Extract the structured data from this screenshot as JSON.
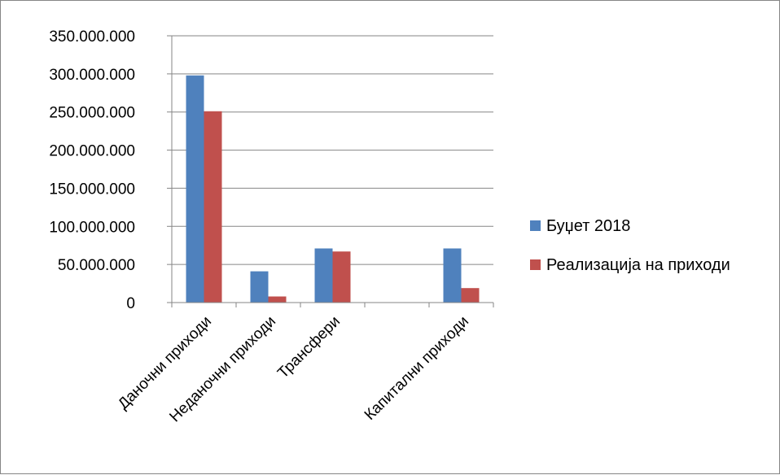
{
  "chart_data": {
    "type": "bar",
    "title": "",
    "xlabel": "",
    "ylabel": "",
    "categories": [
      "Даночни приходи",
      "Неданочни приходи",
      "Трансфери",
      "",
      "Капитални приходи"
    ],
    "series": [
      {
        "name": "Буџет 2018",
        "color": "#4F81BD",
        "values": [
          298000000,
          41000000,
          71000000,
          0,
          71000000
        ]
      },
      {
        "name": "Реализација на приходи",
        "color": "#C0504D",
        "values": [
          251000000,
          8000000,
          67000000,
          0,
          19000000
        ]
      }
    ],
    "ylim": [
      0,
      350000000
    ],
    "yticks": [
      0,
      50000000,
      100000000,
      150000000,
      200000000,
      250000000,
      300000000,
      350000000
    ],
    "ytick_labels": [
      "0",
      "50.000.000",
      "100.000.000",
      "150.000.000",
      "200.000.000",
      "250.000.000",
      "300.000.000",
      "350.000.000"
    ],
    "grid": true,
    "legend_position": "right"
  }
}
